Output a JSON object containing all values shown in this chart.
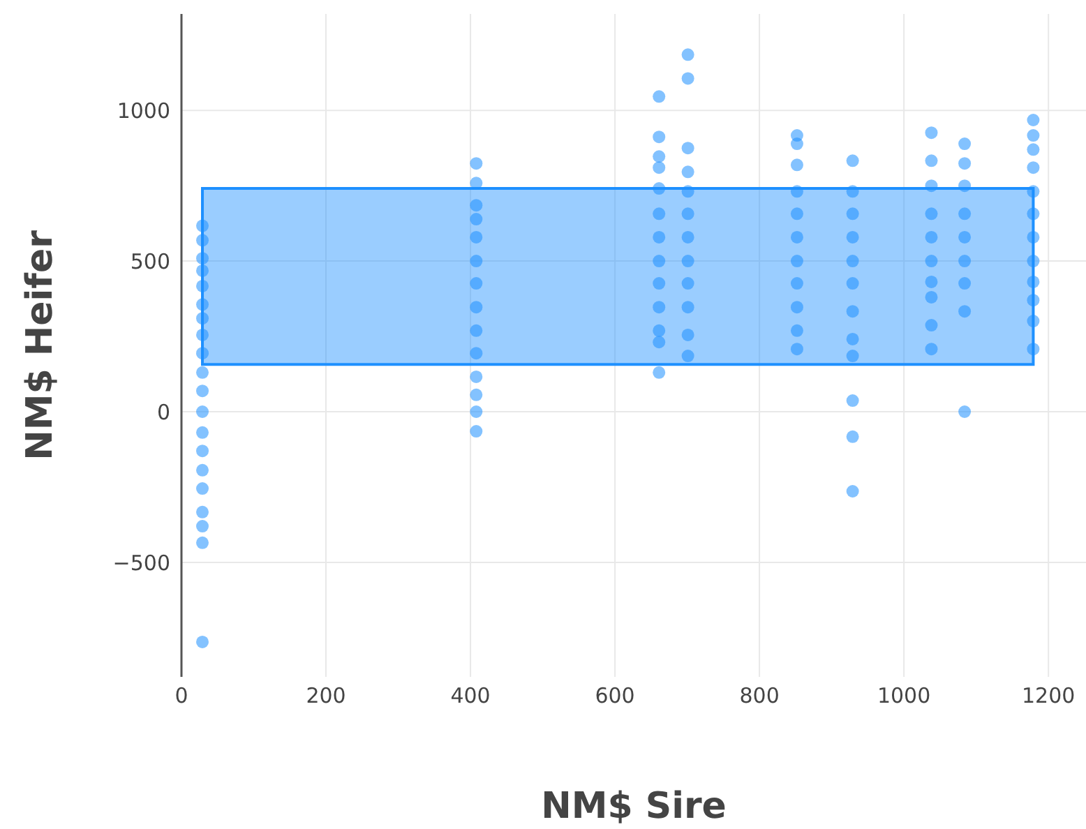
{
  "chart_data": {
    "type": "scatter",
    "xlabel": "NM$ Sire",
    "ylabel": "NM$ Heifer",
    "x": [
      29,
      29,
      29,
      29,
      29,
      29,
      29,
      29,
      29,
      29,
      29,
      29,
      29,
      29,
      29,
      29,
      29,
      29,
      29,
      29,
      408,
      408,
      408,
      408,
      408,
      408,
      408,
      408,
      408,
      408,
      408,
      408,
      408,
      408,
      661,
      661,
      661,
      661,
      661,
      661,
      661,
      661,
      661,
      661,
      661,
      661,
      661,
      701,
      701,
      701,
      701,
      701,
      701,
      701,
      701,
      701,
      701,
      701,
      701,
      852,
      852,
      852,
      852,
      852,
      852,
      852,
      852,
      852,
      852,
      852,
      929,
      929,
      929,
      929,
      929,
      929,
      929,
      929,
      929,
      929,
      929,
      929,
      1038,
      1038,
      1038,
      1038,
      1038,
      1038,
      1038,
      1038,
      1038,
      1038,
      1084,
      1084,
      1084,
      1084,
      1084,
      1084,
      1084,
      1084,
      1084,
      1179,
      1179,
      1179,
      1179,
      1179,
      1179,
      1179,
      1179,
      1179,
      1179,
      1179,
      1179
    ],
    "values": [
      617,
      569,
      509,
      468,
      417,
      356,
      310,
      255,
      194,
      130,
      69,
      0,
      -69,
      -130,
      -194,
      -255,
      -333,
      -380,
      -435,
      -764,
      824,
      759,
      685,
      639,
      579,
      500,
      426,
      347,
      269,
      194,
      116,
      56,
      0,
      -65,
      1046,
      912,
      847,
      810,
      741,
      657,
      579,
      500,
      426,
      347,
      269,
      231,
      130,
      1185,
      1106,
      875,
      796,
      731,
      657,
      579,
      500,
      426,
      347,
      255,
      185,
      917,
      889,
      819,
      731,
      657,
      579,
      500,
      426,
      347,
      269,
      208,
      833,
      731,
      657,
      579,
      500,
      426,
      333,
      241,
      185,
      37,
      -83,
      -264,
      926,
      833,
      750,
      657,
      579,
      500,
      431,
      380,
      287,
      208,
      889,
      824,
      750,
      657,
      579,
      500,
      426,
      333,
      0,
      968,
      917,
      870,
      810,
      731,
      657,
      579,
      500,
      431,
      370,
      301,
      208
    ],
    "color": "#1e90ff",
    "xlim": [
      0,
      1252
    ],
    "xticks": [
      0,
      200,
      400,
      600,
      800,
      1000,
      1200
    ],
    "ylim": [
      -880,
      1320
    ],
    "yticks": [
      -500,
      0,
      500,
      1000
    ],
    "bands": [
      {
        "axis": "y",
        "from": 157,
        "to": 741,
        "color": "#1e90ff"
      }
    ],
    "grid": true,
    "marker": "circle"
  }
}
